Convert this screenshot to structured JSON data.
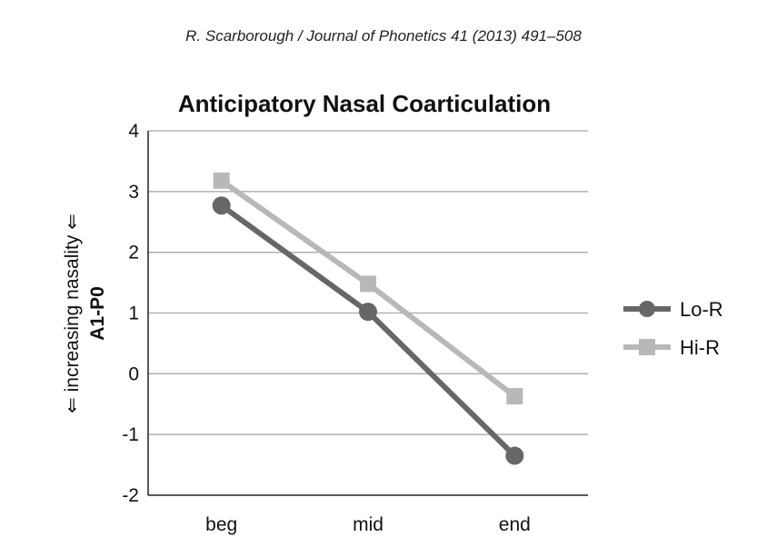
{
  "header": "R. Scarborough / Journal of Phonetics 41 (2013) 491–508",
  "chart_data": {
    "type": "line",
    "title": "Anticipatory Nasal Coarticulation",
    "ylabel_line1": "⇐ increasing nasality ⇐",
    "ylabel_line2": "A1-P0",
    "xlabel": "",
    "categories": [
      "beg",
      "mid",
      "end"
    ],
    "ylim": [
      -2,
      4
    ],
    "yticks": [
      -2,
      -1,
      0,
      1,
      2,
      3,
      4
    ],
    "grid": true,
    "legend_position": "right",
    "series": [
      {
        "name": "Lo-R",
        "values": [
          2.77,
          1.02,
          -1.35
        ],
        "color": "#676767",
        "marker": "circle"
      },
      {
        "name": "Hi-R",
        "values": [
          3.18,
          1.48,
          -0.37
        ],
        "color": "#b8b8b8",
        "marker": "square"
      }
    ]
  }
}
